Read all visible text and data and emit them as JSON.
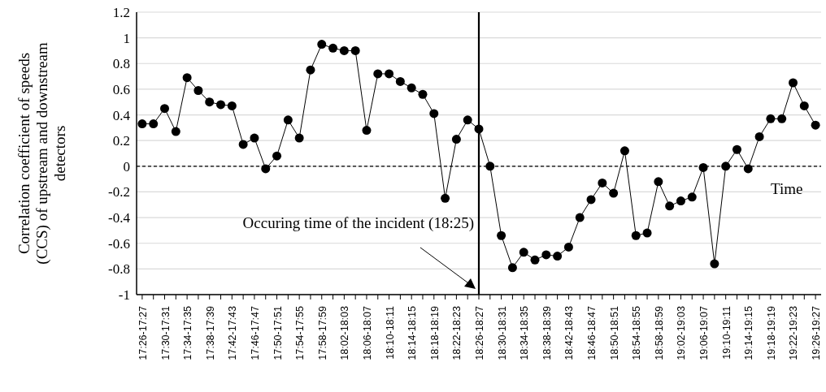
{
  "chart_data": {
    "type": "line",
    "ylabel": "Correlation coefficient of speeds (CCS) of upstream and downstream detectors",
    "xlabel": "Time",
    "categories": [
      "17:26-17:27",
      null,
      "17:30-17:31",
      null,
      "17:34-17:35",
      null,
      "17:38-17:39",
      null,
      "17:42-17:43",
      null,
      "17:46-17:47",
      null,
      "17:50-17:51",
      null,
      "17:54-17:55",
      null,
      "17:58-17:59",
      null,
      "18:02-18:03",
      null,
      "18:06-18:07",
      null,
      "18:10-18:11",
      null,
      "18:14-18:15",
      null,
      "18:18-18:19",
      null,
      "18:22-18:23",
      null,
      "18:26-18:27",
      null,
      "18:30-18:31",
      null,
      "18:34-18:35",
      null,
      "18:38-18:39",
      null,
      "18:42-18:43",
      null,
      "18:46-18:47",
      null,
      "18:50-18:51",
      null,
      "18:54-18:55",
      null,
      "18:58-18:59",
      null,
      "19:02-19:03",
      null,
      "19:06-19:07",
      null,
      "19:10-19:11",
      null,
      "19:14-19:15",
      null,
      "19:18-19:19",
      null,
      "19:22-19:23",
      null,
      "19:26-19:27"
    ],
    "series": [
      {
        "color": "#000000",
        "values": [
          0.33,
          0.33,
          0.45,
          0.27,
          0.69,
          0.59,
          0.5,
          0.48,
          0.47,
          0.17,
          0.22,
          -0.02,
          0.08,
          0.36,
          0.22,
          0.75,
          0.95,
          0.92,
          0.9,
          0.9,
          0.28,
          0.72,
          0.72,
          0.66,
          0.61,
          0.56,
          0.41,
          -0.25,
          0.21,
          0.36,
          0.29,
          0,
          -0.54,
          -0.79,
          -0.67,
          -0.73,
          -0.69,
          -0.7,
          -0.63,
          -0.4,
          -0.26,
          -0.13,
          -0.21,
          0.12,
          -0.54,
          -0.52,
          -0.12,
          -0.31,
          -0.27,
          -0.24,
          -0.01,
          -0.76,
          0,
          0.13,
          -0.02,
          0.23,
          0.37,
          0.37,
          0.65,
          0.47,
          0.32
        ]
      }
    ],
    "ylim": [
      -1,
      1.2
    ],
    "yticks": [
      -1,
      -0.8,
      -0.6,
      -0.4,
      -0.2,
      0,
      0.2,
      0.4,
      0.6,
      0.8,
      1,
      1.2
    ],
    "grid": "y",
    "marker": "circle",
    "line_style": "solid",
    "legend": false,
    "ref_lines": [
      {
        "axis": "x",
        "value": "18:26-18:27",
        "label": "Occuring time of the incident (18:25)",
        "color": "#000000",
        "line_style": "solid"
      },
      {
        "axis": "y",
        "value": 0,
        "color": "#000000",
        "line_style": "dashed"
      }
    ]
  }
}
